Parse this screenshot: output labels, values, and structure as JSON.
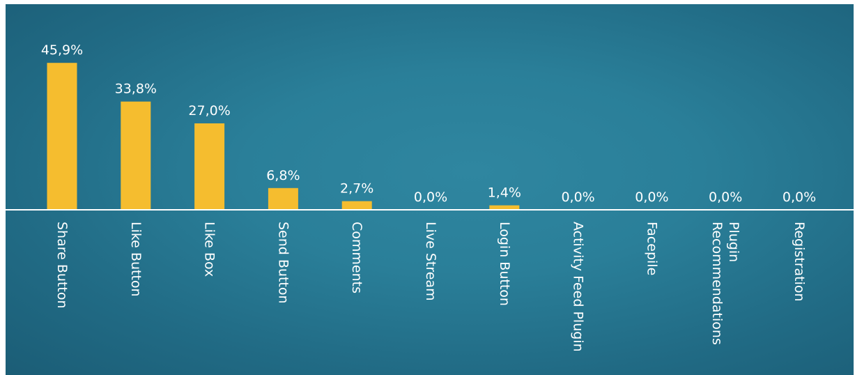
{
  "chart_data": {
    "type": "bar",
    "title": "",
    "xlabel": "",
    "ylabel": "",
    "ylim": [
      0,
      50
    ],
    "grid": false,
    "legend": "none",
    "categories": [
      [
        "Share Button"
      ],
      [
        "Like Button"
      ],
      [
        "Like Box"
      ],
      [
        "Send Button"
      ],
      [
        "Comments"
      ],
      [
        "Live Stream"
      ],
      [
        "Login Button"
      ],
      [
        "Activity Feed Plugin"
      ],
      [
        "Facepile"
      ],
      [
        "Recommendations",
        "Plugin"
      ],
      [
        "Registration"
      ]
    ],
    "values": [
      45.9,
      33.8,
      27.0,
      6.8,
      2.7,
      0.0,
      1.4,
      0.0,
      0.0,
      0.0,
      0.0
    ],
    "value_labels": [
      "45,9%",
      "33,8%",
      "27,0%",
      "6,8%",
      "2,7%",
      "0,0%",
      "1,4%",
      "0,0%",
      "0,0%",
      "0,0%",
      "0,0%"
    ],
    "colors": {
      "bar": "#f5bd2f",
      "background": "#2a7f99",
      "baseline": "#ffffff",
      "text": "#ffffff"
    }
  }
}
